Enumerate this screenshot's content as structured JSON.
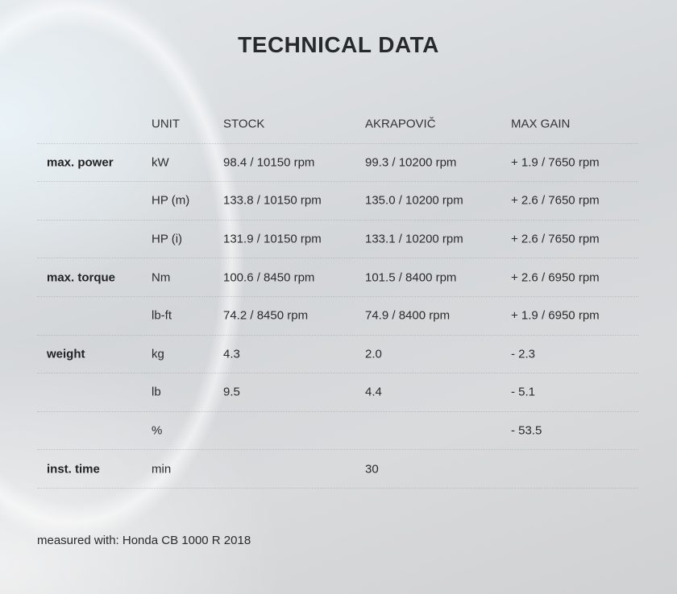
{
  "title": "TECHNICAL DATA",
  "table": {
    "headers": [
      "",
      "UNIT",
      "STOCK",
      "AKRAPOVIČ",
      "MAX GAIN"
    ],
    "rows": [
      [
        "max. power",
        "kW",
        "98.4 / 10150 rpm",
        "99.3 / 10200 rpm",
        "+ 1.9 / 7650 rpm"
      ],
      [
        "",
        "HP (m)",
        "133.8 / 10150 rpm",
        "135.0 / 10200 rpm",
        "+ 2.6 / 7650 rpm"
      ],
      [
        "",
        "HP (i)",
        "131.9 / 10150 rpm",
        "133.1 / 10200 rpm",
        "+ 2.6 / 7650 rpm"
      ],
      [
        "max. torque",
        "Nm",
        "100.6 / 8450 rpm",
        "101.5 / 8400 rpm",
        "+ 2.6 / 6950 rpm"
      ],
      [
        "",
        "lb-ft",
        "74.2 / 8450 rpm",
        "74.9 / 8400 rpm",
        "+ 1.9 / 6950 rpm"
      ],
      [
        "weight",
        "kg",
        "4.3",
        "2.0",
        "- 2.3"
      ],
      [
        "",
        "lb",
        "9.5",
        "4.4",
        "- 5.1"
      ],
      [
        "",
        "%",
        "",
        "",
        "- 53.5"
      ],
      [
        "inst. time",
        "min",
        "",
        "30",
        ""
      ]
    ]
  },
  "footnote": "measured with: Honda CB 1000 R 2018"
}
